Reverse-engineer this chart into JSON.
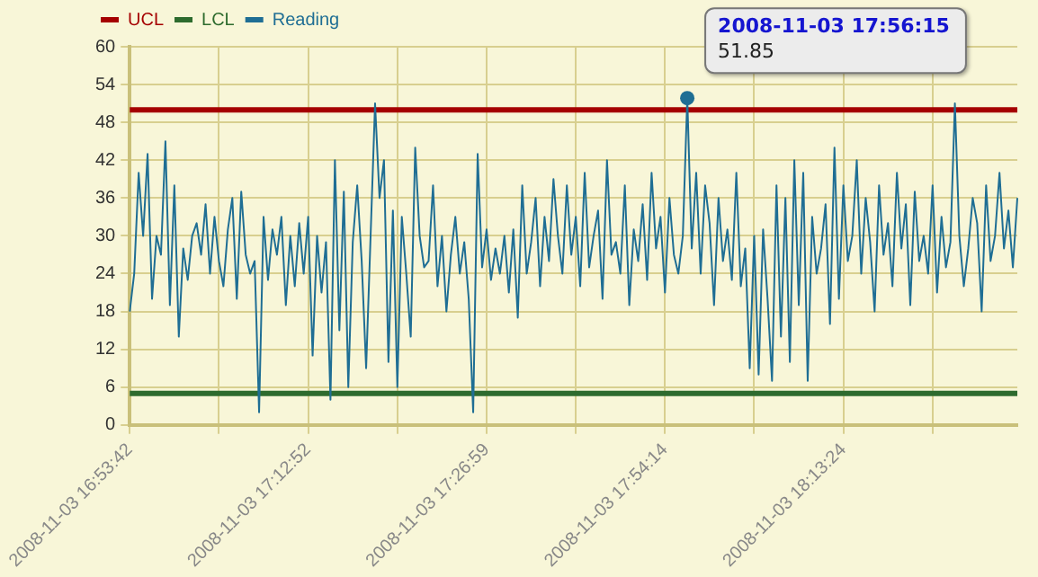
{
  "chart_data": {
    "type": "line",
    "categories": [
      "2008-11-03 16:53:42",
      null,
      null,
      null,
      null,
      null,
      null,
      null,
      null,
      null,
      null,
      null,
      null,
      null,
      null,
      null,
      null,
      null,
      null,
      null,
      null,
      null,
      null,
      null,
      null,
      null,
      null,
      null,
      null,
      null,
      null,
      null,
      null,
      null,
      null,
      null,
      null,
      null,
      null,
      null,
      "2008-11-03 17:12:52",
      null,
      null,
      null,
      null,
      null,
      null,
      null,
      null,
      null,
      null,
      null,
      null,
      null,
      null,
      null,
      null,
      null,
      null,
      null,
      null,
      null,
      null,
      null,
      null,
      null,
      null,
      null,
      null,
      null,
      null,
      null,
      null,
      null,
      null,
      null,
      null,
      null,
      null,
      null,
      "2008-11-03 17:26:59",
      null,
      null,
      null,
      null,
      null,
      null,
      null,
      null,
      null,
      null,
      null,
      null,
      null,
      null,
      null,
      null,
      null,
      null,
      null,
      null,
      null,
      null,
      null,
      null,
      null,
      null,
      null,
      null,
      null,
      null,
      null,
      null,
      null,
      null,
      null,
      null,
      null,
      null,
      null,
      "2008-11-03 17:54:14",
      null,
      null,
      null,
      null,
      null,
      null,
      null,
      null,
      null,
      null,
      null,
      null,
      null,
      null,
      null,
      null,
      null,
      null,
      null,
      null,
      null,
      null,
      null,
      null,
      null,
      null,
      null,
      null,
      null,
      null,
      null,
      null,
      null,
      null,
      null,
      null,
      null,
      null,
      null,
      "2008-11-03 18:13:24",
      null,
      null,
      null,
      null,
      null,
      null,
      null,
      null,
      null,
      null,
      null,
      null,
      null,
      null,
      null,
      null,
      null,
      null,
      null,
      null,
      null,
      null,
      null,
      null,
      null,
      null,
      null,
      null,
      null,
      null,
      null,
      null,
      null,
      null,
      null,
      null,
      null,
      null,
      null
    ],
    "series": [
      {
        "name": "Reading",
        "color": "#1f6e94",
        "values": [
          18,
          24,
          40,
          30,
          43,
          20,
          30,
          27,
          45,
          19,
          38,
          14,
          28,
          23,
          30,
          32,
          27,
          35,
          24,
          33,
          26,
          22,
          31,
          36,
          20,
          37,
          27,
          24,
          26,
          2,
          33,
          23,
          31,
          27,
          33,
          19,
          30,
          22,
          32,
          24,
          33,
          11,
          30,
          21,
          29,
          4,
          42,
          15,
          37,
          6,
          29,
          38,
          26,
          9,
          30,
          51,
          36,
          42,
          10,
          34,
          6,
          33,
          24,
          14,
          44,
          30,
          25,
          26,
          38,
          22,
          30,
          18,
          27,
          33,
          24,
          29,
          20,
          2,
          43,
          25,
          31,
          23,
          28,
          24,
          30,
          21,
          31,
          17,
          38,
          24,
          29,
          36,
          22,
          33,
          26,
          39,
          30,
          24,
          38,
          27,
          33,
          22,
          40,
          25,
          30,
          34,
          20,
          42,
          27,
          29,
          24,
          38,
          19,
          31,
          26,
          35,
          23,
          40,
          28,
          33,
          21,
          36,
          27,
          24,
          30,
          51.85,
          28,
          40,
          24,
          38,
          32,
          19,
          36,
          26,
          31,
          23,
          40,
          22,
          28,
          9,
          30,
          8,
          31,
          20,
          7,
          38,
          14,
          36,
          10,
          42,
          19,
          40,
          7,
          33,
          24,
          28,
          35,
          16,
          44,
          20,
          38,
          26,
          30,
          42,
          24,
          36,
          29,
          18,
          38,
          27,
          32,
          22,
          40,
          28,
          35,
          19,
          37,
          26,
          30,
          24,
          38,
          21,
          33,
          25,
          29,
          51,
          30,
          22,
          28,
          36,
          32,
          18,
          38,
          26,
          30,
          40,
          28,
          34,
          25,
          36
        ],
        "value_labels": [
          null,
          null,
          null,
          null,
          null,
          null,
          null,
          null,
          null,
          null,
          null,
          null,
          null,
          null,
          null,
          null,
          null,
          null,
          null,
          null,
          null,
          null,
          null,
          null,
          null,
          null,
          null,
          null,
          null,
          null,
          null,
          null,
          null,
          null,
          null,
          null,
          null,
          null,
          null,
          null,
          null,
          null,
          null,
          null,
          null,
          null,
          null,
          null,
          null,
          null,
          null,
          null,
          null,
          null,
          null,
          null,
          null,
          null,
          null,
          null,
          null,
          null,
          null,
          null,
          null,
          null,
          null,
          null,
          null,
          null,
          null,
          null,
          null,
          null,
          null,
          null,
          null,
          null,
          null,
          null,
          null,
          null,
          null,
          null,
          null,
          null,
          null,
          null,
          null,
          null,
          null,
          null,
          null,
          null,
          null,
          null,
          null,
          null,
          null,
          null,
          null,
          null,
          null,
          null,
          null,
          null,
          null,
          null,
          null,
          null,
          null,
          null,
          null,
          null,
          null,
          null,
          null,
          null,
          null,
          null,
          null,
          null,
          null,
          null,
          null,
          "51.85",
          null,
          null,
          null,
          null,
          null,
          null,
          null,
          null,
          null,
          null,
          null,
          null,
          null,
          null,
          null,
          null,
          null,
          null,
          null,
          null,
          null,
          null,
          null,
          null,
          null,
          null,
          null,
          null,
          null,
          null,
          null,
          null,
          null,
          null,
          null,
          null,
          null,
          null,
          null,
          null,
          null,
          null,
          null,
          null,
          null,
          null,
          null,
          null,
          null,
          null,
          null,
          null,
          null,
          null,
          null,
          null,
          null,
          null,
          null,
          null,
          null,
          null,
          null,
          null,
          null,
          null,
          null,
          null,
          null,
          null,
          null,
          null,
          null,
          null
        ]
      }
    ],
    "ref_lines": [
      {
        "axis": "y",
        "value": 50,
        "label": "UCL",
        "color": "#a50000"
      },
      {
        "axis": "y",
        "value": 5,
        "label": "LCL",
        "color": "#2e6b2e"
      }
    ],
    "annotations": [
      "2008-11-03 17:56:15"
    ],
    "ylim": [
      0,
      60
    ],
    "yticks": [
      0,
      6,
      12,
      18,
      24,
      30,
      36,
      42,
      48,
      54,
      60
    ],
    "grid": true,
    "legend": "top left",
    "marker": "none"
  }
}
